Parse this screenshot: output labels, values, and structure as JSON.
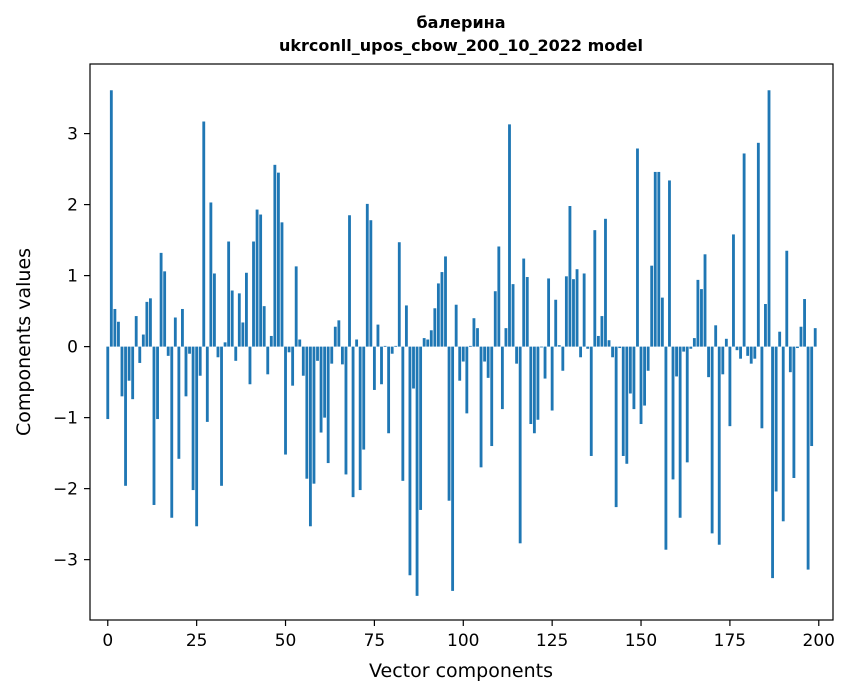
{
  "chart_data": {
    "type": "bar",
    "title": "балерина",
    "subtitle": "ukrconll_upos_cbow_200_10_2022 model",
    "xlabel": "Vector components",
    "ylabel": "Components values",
    "xlim": [
      -5,
      204
    ],
    "ylim": [
      -3.85,
      3.98
    ],
    "xticks": [
      0,
      25,
      50,
      75,
      100,
      125,
      150,
      175,
      200
    ],
    "yticks": [
      -3,
      -2,
      -1,
      0,
      1,
      2,
      3
    ],
    "ytick_labels": [
      "−3",
      "−2",
      "−1",
      "0",
      "1",
      "2",
      "3"
    ],
    "grid": false,
    "color": "#1f77b4",
    "values": [
      -1.02,
      3.61,
      0.53,
      0.35,
      -0.7,
      -1.96,
      -0.48,
      -0.74,
      0.43,
      -0.23,
      0.17,
      0.63,
      0.68,
      -2.23,
      -1.02,
      1.32,
      1.06,
      -0.13,
      -2.41,
      0.41,
      -1.58,
      0.53,
      -0.7,
      -0.1,
      -2.02,
      -2.53,
      -0.41,
      3.17,
      -1.06,
      2.03,
      1.03,
      -0.15,
      -1.96,
      0.06,
      1.48,
      0.79,
      -0.2,
      0.75,
      0.34,
      1.04,
      -0.53,
      1.48,
      1.93,
      1.86,
      0.57,
      -0.39,
      0.15,
      2.56,
      2.45,
      1.75,
      -1.52,
      -0.08,
      -0.55,
      1.13,
      0.1,
      -0.41,
      -1.86,
      -2.53,
      -1.93,
      -0.2,
      -1.21,
      -1.0,
      -1.64,
      -0.24,
      0.28,
      0.37,
      -0.25,
      -1.8,
      1.85,
      -2.12,
      0.1,
      -2.02,
      -1.45,
      2.01,
      1.78,
      -0.61,
      0.31,
      -0.53,
      0.01,
      -1.22,
      -0.1,
      0.01,
      1.47,
      -1.89,
      0.58,
      -3.22,
      -0.59,
      -3.51,
      -2.3,
      0.12,
      0.1,
      0.23,
      0.54,
      0.89,
      1.05,
      1.27,
      -2.17,
      -3.44,
      0.59,
      -0.48,
      -0.21,
      -0.94,
      0.01,
      0.4,
      0.26,
      -1.7,
      -0.21,
      -0.44,
      -1.4,
      0.78,
      1.41,
      -0.88,
      0.26,
      3.13,
      0.88,
      -0.24,
      -2.77,
      1.24,
      0.98,
      -1.09,
      -1.22,
      -1.03,
      -0.01,
      -0.45,
      0.96,
      -0.9,
      0.66,
      0.02,
      -0.34,
      0.99,
      1.98,
      0.95,
      1.09,
      -0.15,
      1.03,
      -0.03,
      -1.54,
      1.64,
      0.15,
      0.43,
      1.8,
      0.09,
      -0.15,
      -2.26,
      -0.02,
      -1.54,
      -1.65,
      -0.66,
      -0.88,
      2.79,
      -1.09,
      -0.83,
      -0.34,
      1.14,
      2.46,
      2.46,
      0.69,
      -2.86,
      2.34,
      -1.87,
      -0.42,
      -2.41,
      -0.07,
      -1.63,
      -0.03,
      0.12,
      0.94,
      0.81,
      1.3,
      -0.43,
      -2.63,
      0.3,
      -2.79,
      -0.39,
      0.11,
      -1.12,
      1.58,
      -0.05,
      -0.17,
      2.72,
      -0.13,
      -0.24,
      -0.17,
      2.87,
      -1.15,
      0.6,
      3.61,
      -3.26,
      -2.04,
      0.21,
      -2.46,
      1.35,
      -0.36,
      -1.85,
      -0.02,
      0.28,
      0.67,
      -3.14,
      -1.4,
      0.26
    ]
  }
}
